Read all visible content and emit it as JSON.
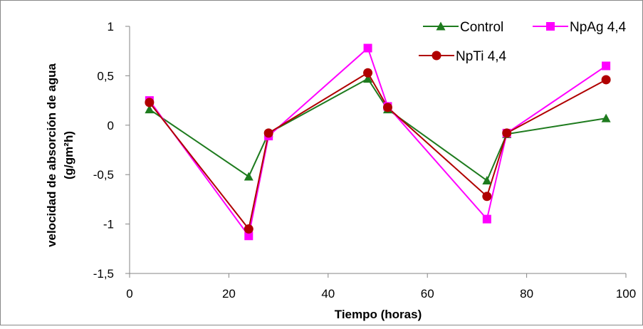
{
  "chart_data": {
    "type": "line",
    "title": "",
    "xlabel": "Tiempo (horas)",
    "ylabel_line1": "velocidad de absorción de agua",
    "ylabel_line2": "(g/gm²h)",
    "xlim": [
      0,
      100
    ],
    "ylim": [
      -1.5,
      1
    ],
    "xticks": [
      0,
      20,
      40,
      60,
      80,
      100
    ],
    "xtick_labels": [
      "0",
      "20",
      "40",
      "60",
      "80",
      "100"
    ],
    "yticks": [
      1,
      0.5,
      0,
      -0.5,
      -1,
      -1.5
    ],
    "ytick_labels": [
      "1",
      "0,5",
      "0",
      "-0,5",
      "-1",
      "-1,5"
    ],
    "grid": false,
    "legend_position": "top-right",
    "x": [
      4,
      24,
      28,
      48,
      52,
      72,
      76,
      96
    ],
    "series": [
      {
        "name": "Control",
        "color": "#1e7b1e",
        "marker": "triangle",
        "values": [
          0.16,
          -0.52,
          -0.08,
          0.47,
          0.16,
          -0.56,
          -0.09,
          0.07
        ]
      },
      {
        "name": "NpAg 4,4",
        "color": "#ff00ff",
        "marker": "square",
        "values": [
          0.25,
          -1.12,
          -0.11,
          0.78,
          0.19,
          -0.95,
          -0.08,
          0.6
        ]
      },
      {
        "name": "NpTi 4,4",
        "color": "#b00000",
        "marker": "circle",
        "values": [
          0.23,
          -1.05,
          -0.08,
          0.53,
          0.18,
          -0.72,
          -0.08,
          0.46
        ]
      }
    ]
  }
}
